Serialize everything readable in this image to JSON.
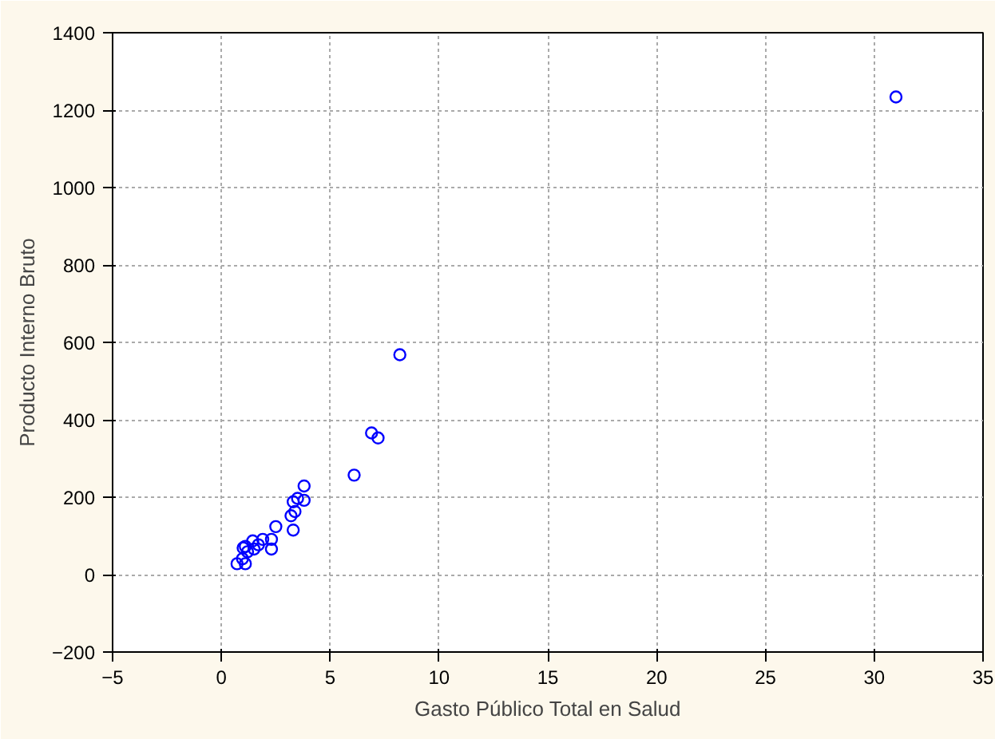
{
  "chart_data": {
    "type": "scatter",
    "xlabel": "Gasto Público Total en Salud",
    "ylabel": "Producto Interno Bruto",
    "x": [
      0.72,
      1.1,
      0.97,
      1.2,
      1.5,
      1.0,
      1.1,
      1.44,
      1.7,
      1.9,
      2.3,
      2.3,
      2.5,
      3.3,
      3.2,
      3.38,
      3.8,
      3.5,
      3.3,
      3.8,
      6.1,
      6.9,
      7.2,
      8.2,
      31.0
    ],
    "series": [
      {
        "color": "#0000ff",
        "values": [
          28,
          28,
          41,
          59,
          66,
          69,
          73,
          87,
          77,
          91,
          66,
          91,
          124,
          115,
          152,
          163,
          192,
          197,
          188,
          229,
          257,
          366,
          353,
          568,
          1234
        ]
      }
    ],
    "xlim": [
      -5,
      35
    ],
    "ylim": [
      -200,
      1400
    ],
    "xticks": [
      -5,
      0,
      5,
      10,
      15,
      20,
      25,
      30,
      35
    ],
    "yticks": [
      -200,
      0,
      200,
      400,
      600,
      800,
      1000,
      1200,
      1400
    ],
    "grid": true,
    "marker": "circle"
  }
}
